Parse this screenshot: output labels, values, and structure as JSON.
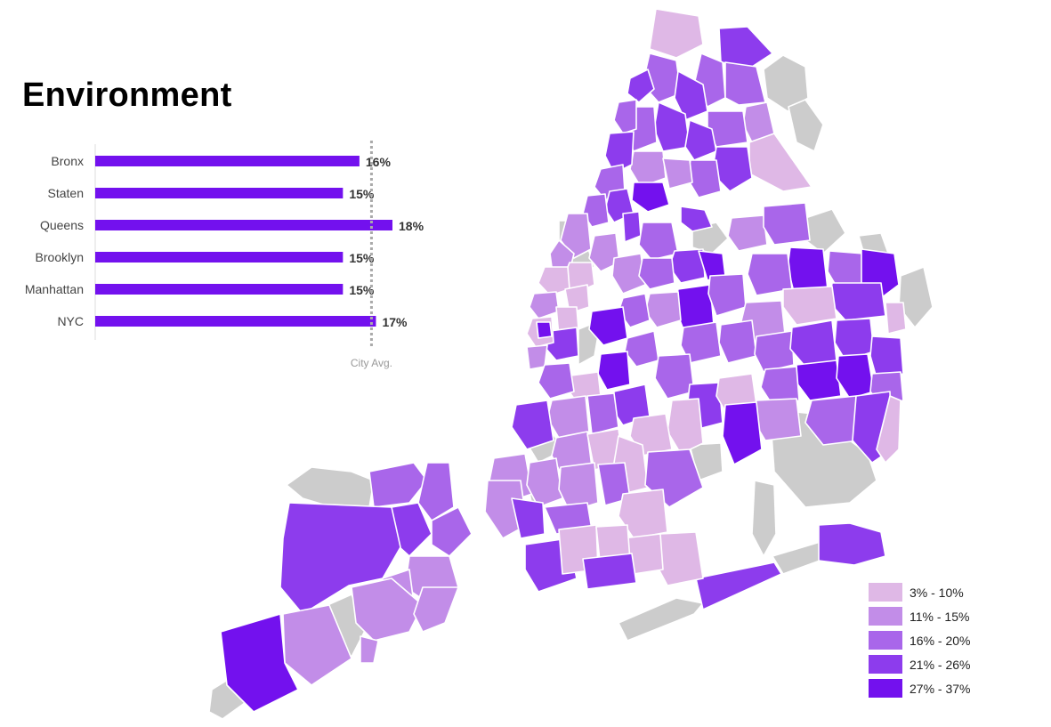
{
  "title": "Environment",
  "chart_data": {
    "type": "bar",
    "orientation": "horizontal",
    "categories": [
      "Bronx",
      "Staten",
      "Queens",
      "Brooklyn",
      "Manhattan",
      "NYC"
    ],
    "values": [
      16,
      15,
      18,
      15,
      15,
      17
    ],
    "value_labels": [
      "16%",
      "15%",
      "18%",
      "15%",
      "15%",
      "17%"
    ],
    "reference_line": {
      "label": "City Avg.",
      "value": 17
    },
    "bar_color": "#7311ee"
  },
  "legend": {
    "items": [
      {
        "label": "3% - 10%",
        "color": "#dfb8e6"
      },
      {
        "label": "11% - 15%",
        "color": "#c28de8"
      },
      {
        "label": "16% - 20%",
        "color": "#a966ea"
      },
      {
        "label": "21% - 26%",
        "color": "#8d3ced"
      },
      {
        "label": "27% - 37%",
        "color": "#7311ee"
      }
    ]
  },
  "map_colors": {
    "no_data": "#cccccc",
    "border": "#ffffff"
  }
}
